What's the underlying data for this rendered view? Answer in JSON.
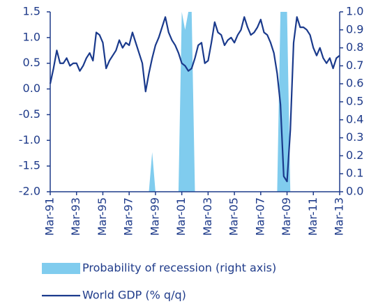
{
  "chart_data": {
    "type": "line",
    "categories": [
      "Mar-91",
      null,
      null,
      null,
      null,
      null,
      null,
      null,
      "Mar-93",
      null,
      null,
      null,
      null,
      null,
      null,
      null,
      "Mar-95",
      null,
      null,
      null,
      null,
      null,
      null,
      null,
      "Mar-97",
      null,
      null,
      null,
      null,
      null,
      null,
      null,
      "Mar-99",
      null,
      null,
      null,
      null,
      null,
      null,
      null,
      "Mar-01",
      null,
      null,
      null,
      null,
      null,
      null,
      null,
      "Mar-03",
      null,
      null,
      null,
      null,
      null,
      null,
      null,
      "Mar-05",
      null,
      null,
      null,
      null,
      null,
      null,
      null,
      "Mar-07",
      null,
      null,
      null,
      null,
      null,
      null,
      null,
      "Mar-09",
      null,
      null,
      null,
      null,
      null,
      null,
      null,
      "Mar-11",
      null,
      null,
      null,
      null,
      null,
      null,
      null,
      "Mar-13"
    ],
    "series": [
      {
        "name": "Probability of recession (right axis)",
        "type": "area",
        "axis": "y2",
        "color": "#80ccee",
        "values": [
          0,
          0,
          0,
          0,
          0,
          0,
          0,
          0,
          0,
          0,
          0,
          0,
          0,
          0,
          0,
          0,
          0,
          0,
          0,
          0,
          0,
          0,
          0,
          0,
          0,
          0,
          0,
          0,
          0,
          0,
          0,
          0.22,
          0,
          0,
          0,
          0,
          0,
          0,
          0,
          0,
          1,
          0.9,
          1,
          1,
          0,
          0,
          0,
          0,
          0,
          0,
          0,
          0,
          0,
          0,
          0,
          0,
          0,
          0,
          0,
          0,
          0,
          0,
          0,
          0,
          0,
          0,
          0,
          0,
          0,
          0,
          1,
          1,
          1,
          0,
          0,
          0,
          0,
          0,
          0,
          0,
          0,
          0,
          0,
          0,
          0,
          0,
          0,
          0,
          0
        ]
      },
      {
        "name": "World GDP (% q/q)",
        "type": "line",
        "color": "#1a3a8c",
        "values": [
          0.1,
          0.4,
          0.75,
          0.5,
          0.5,
          0.6,
          0.45,
          0.5,
          0.5,
          0.35,
          0.45,
          0.6,
          0.7,
          0.55,
          1.1,
          1.05,
          0.9,
          0.4,
          0.55,
          0.65,
          0.75,
          0.95,
          0.8,
          0.9,
          0.85,
          1.1,
          0.9,
          0.7,
          0.5,
          -0.05,
          0.3,
          0.6,
          0.85,
          1.0,
          1.2,
          1.4,
          1.1,
          0.95,
          0.85,
          0.7,
          0.5,
          0.45,
          0.35,
          0.4,
          0.6,
          0.85,
          0.9,
          0.5,
          0.55,
          0.9,
          1.3,
          1.1,
          1.05,
          0.85,
          0.95,
          1.0,
          0.9,
          1.05,
          1.15,
          1.4,
          1.2,
          1.05,
          1.1,
          1.2,
          1.35,
          1.1,
          1.05,
          0.9,
          0.7,
          0.3,
          -0.3,
          -1.7,
          -1.8,
          -0.8,
          0.9,
          1.4,
          1.2,
          1.2,
          1.15,
          1.05,
          0.8,
          0.65,
          0.8,
          0.6,
          0.5,
          0.6,
          0.4,
          0.6,
          0.65
        ]
      }
    ],
    "ylim": [
      -2,
      1.5
    ],
    "yticks": [
      {
        "value": -2,
        "label": "-2.0"
      },
      -1.5,
      {
        "value": -1,
        "label": "-1.0"
      },
      -0.5,
      {
        "value": 0,
        "label": "0.0"
      },
      0.5,
      {
        "value": 1,
        "label": "1.0"
      },
      1.5
    ],
    "y2lim": [
      0,
      1
    ],
    "y2ticks": [
      {
        "value": 0,
        "label": "0.0"
      },
      0.1,
      0.2,
      0.3,
      0.4,
      0.5,
      0.6,
      0.7,
      0.8,
      0.9,
      {
        "value": 1,
        "label": "1.0"
      }
    ],
    "grid": false,
    "legend": "bottom"
  }
}
